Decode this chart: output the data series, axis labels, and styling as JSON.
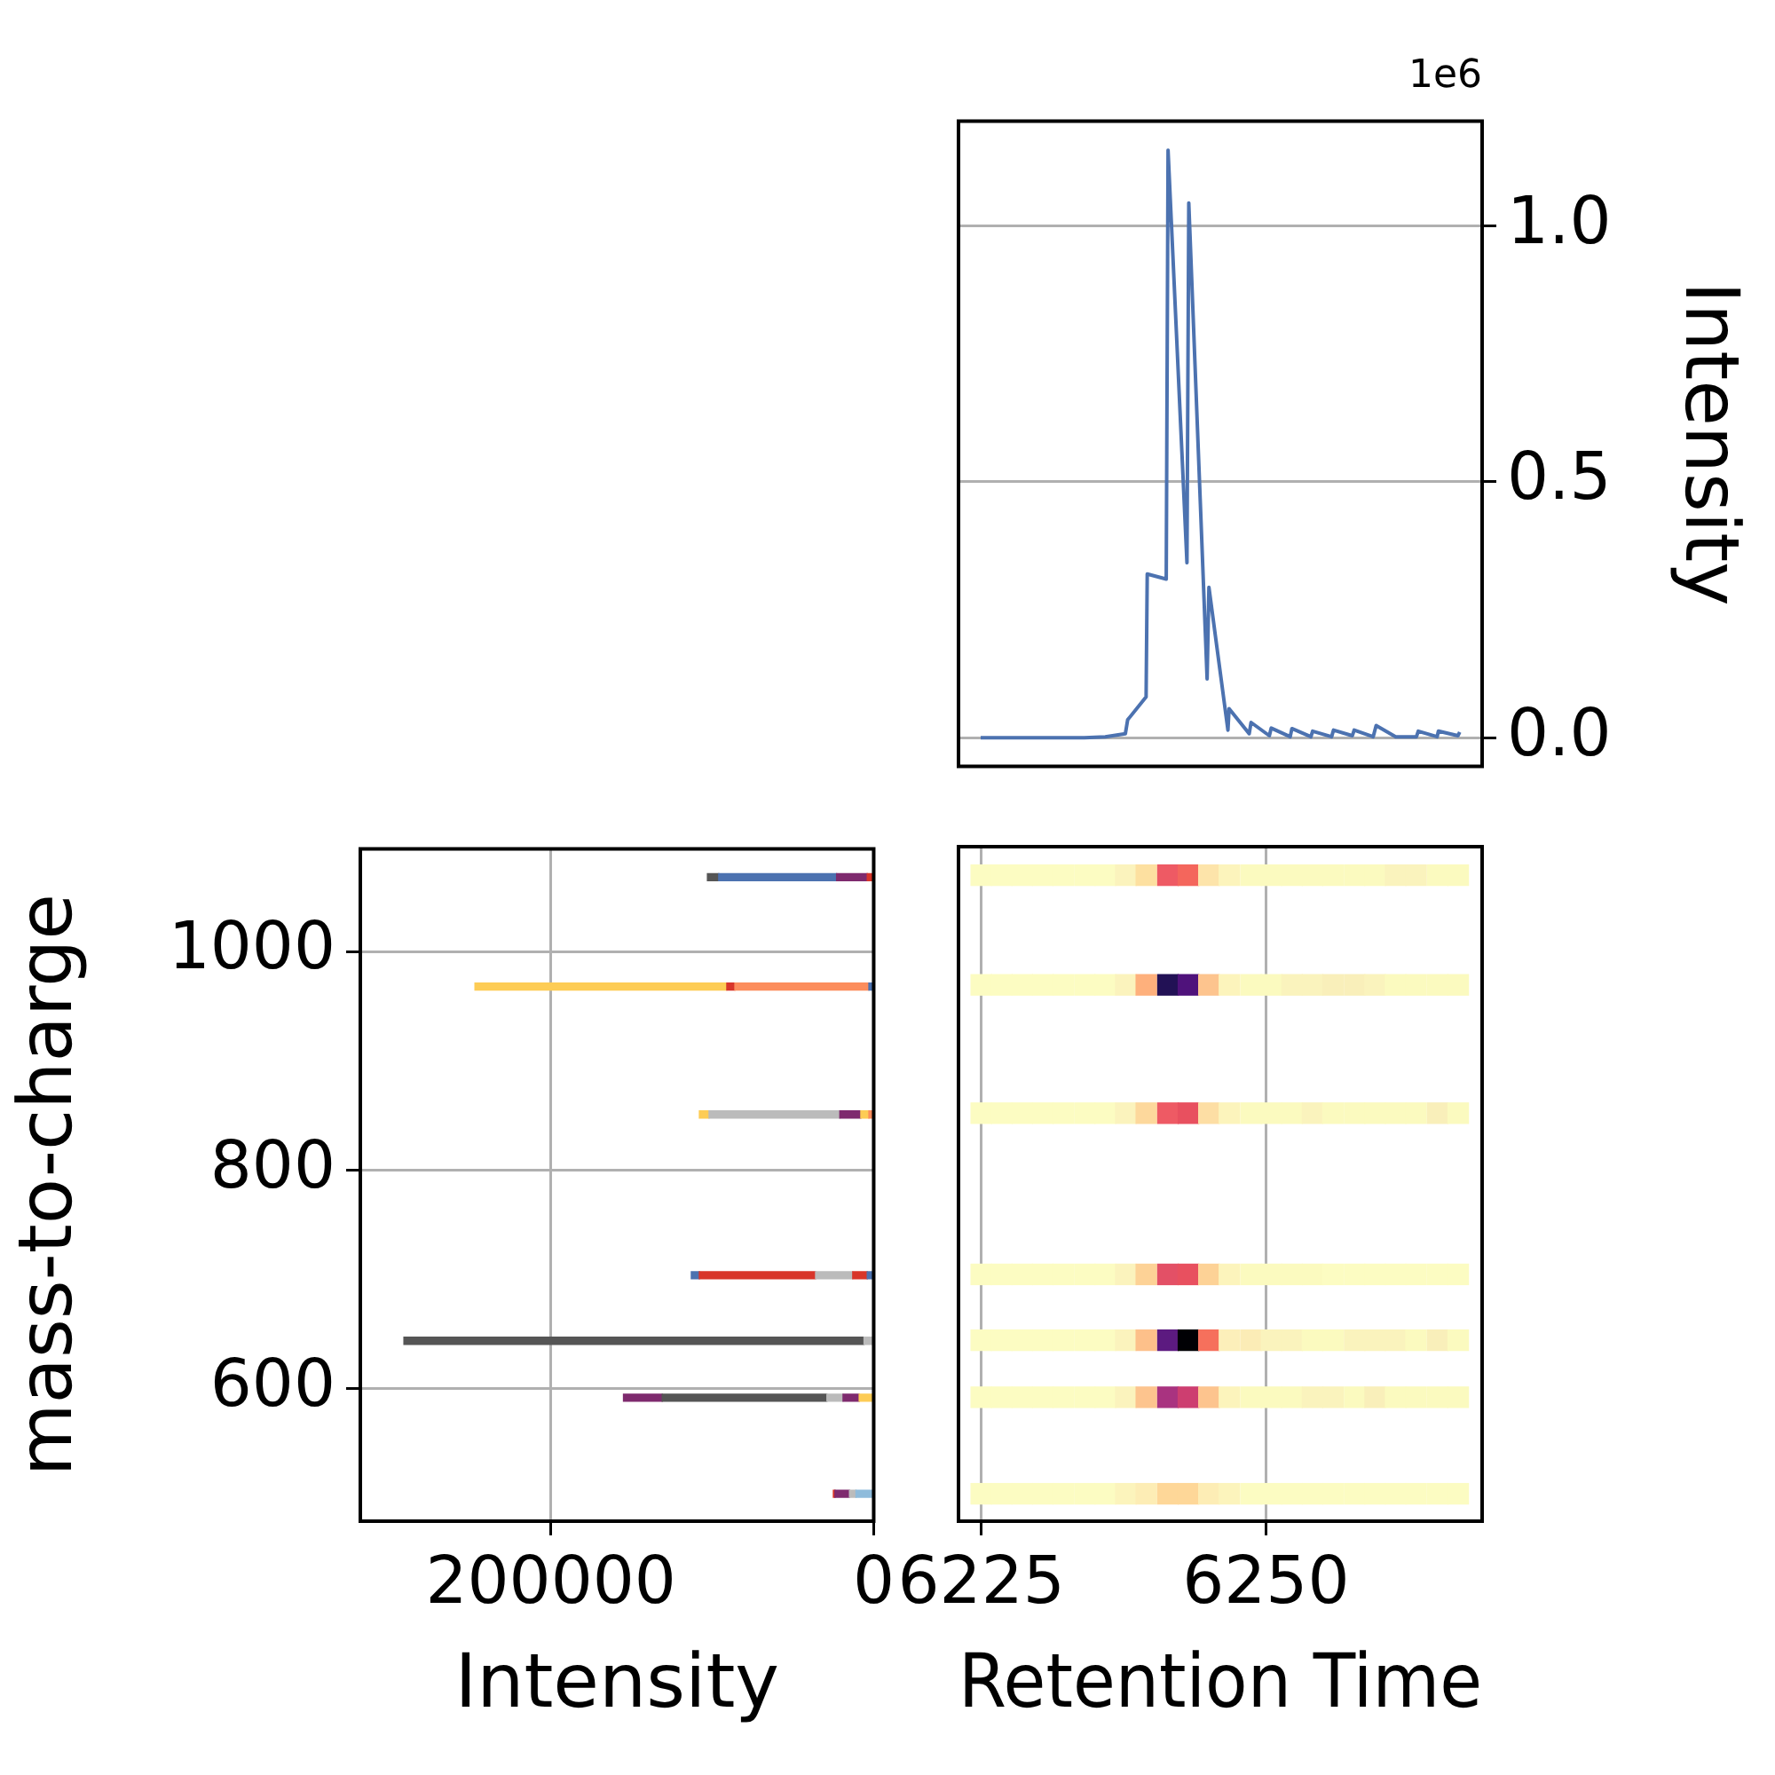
{
  "chart_data": [
    {
      "type": "line",
      "ylabel": "Intensity",
      "annotations": [
        "1e6"
      ],
      "grid": "y",
      "tick_labels": "y",
      "color": "#4c72b0",
      "x": [
        6224.95,
        6226.77,
        6228.59,
        6230.42,
        6232.24,
        6234.06,
        6235.89,
        6237.66,
        6237.86,
        6239.48,
        6239.58,
        6241.25,
        6241.41,
        6243.07,
        6243.23,
        6244.84,
        6245.0,
        6246.67,
        6246.77,
        6248.54,
        6248.7,
        6250.31,
        6250.47,
        6252.14,
        6252.29,
        6253.96,
        6254.11,
        6255.78,
        6255.94,
        6257.6,
        6257.76,
        6259.43,
        6259.69,
        6261.41,
        6263.23,
        6263.39,
        6265.05,
        6265.16,
        6266.88,
        6267.03
      ],
      "values": [
        0,
        0,
        0,
        0,
        0,
        0,
        0.002,
        0.008,
        0.035,
        0.08,
        0.32,
        0.31,
        1.148,
        0.342,
        1.045,
        0.115,
        0.294,
        0.015,
        0.057,
        0.008,
        0.03,
        0.004,
        0.019,
        0.002,
        0.018,
        0.002,
        0.013,
        0.002,
        0.015,
        0.004,
        0.015,
        0.002,
        0.024,
        0.002,
        0.002,
        0.013,
        0.002,
        0.013,
        0.004,
        0.011
      ],
      "xlim": [
        6223,
        6269
      ],
      "ylim": [
        -0.056,
        1.205
      ],
      "yticks": [
        {
          "value": 0,
          "label": "0.0"
        },
        0.5,
        {
          "value": 1,
          "label": "1.0"
        }
      ]
    },
    {
      "type": "bar",
      "orientation": "horizontal",
      "stacked": true,
      "xlabel": "Intensity",
      "ylabel": "mass-to-charge",
      "grid": true,
      "x": [
        1068,
        968,
        851,
        704,
        644,
        592,
        504
      ],
      "series": [
        {
          "values": [
            4000,
            3000,
            3000,
            4000,
            6000,
            9000,
            11000
          ],
          "colors": [
            "#d8352a",
            "#4c72b0",
            "#fc8d5c",
            "#4c72b0",
            "#bbbbbb",
            "#fdcc55",
            "#8ebbdb"
          ]
        },
        {
          "values": [
            19000,
            83000,
            5000,
            9000,
            285000,
            10000,
            4000
          ],
          "colors": [
            "#7e2a6e",
            "#fc8d5c",
            "#fdcc55",
            "#d8352a",
            "#555555",
            "#7e2a6e",
            "#bbbbbb"
          ]
        },
        {
          "values": [
            73000,
            5000,
            13000,
            23000,
            null,
            10000,
            9000
          ],
          "colors": [
            "#4c72b0",
            "#d8352a",
            "#7e2a6e",
            "#bbbbbb",
            null,
            "#bbbbbb",
            "#7e2a6e"
          ]
        },
        {
          "values": [
            7000,
            156000,
            81000,
            72000,
            null,
            102000,
            1000
          ],
          "colors": [
            "#555555",
            "#fdcc55",
            "#bbbbbb",
            "#d8352a",
            null,
            "#555555",
            "#d8352a"
          ]
        },
        {
          "values": [
            null,
            null,
            6000,
            5000,
            null,
            24000,
            null
          ],
          "colors": [
            null,
            null,
            "#fdcc55",
            "#4c72b0",
            null,
            "#7e2a6e",
            null
          ]
        }
      ],
      "xlim": [
        318000,
        0
      ],
      "xticks": [
        200000,
        0
      ],
      "ylim": [
        479,
        1094
      ],
      "yticks": [
        600,
        800,
        1000
      ]
    },
    {
      "type": "scatter",
      "xlabel": "Retention Time",
      "grid": "x",
      "tick_labels": "x",
      "marker": "square",
      "x": [
        6225.0,
        6226.8,
        6228.6,
        6230.4,
        6232.2,
        6234.1,
        6235.9,
        6237.7,
        6239.5,
        6241.4,
        6243.2,
        6245.0,
        6246.8,
        6248.7,
        6250.5,
        6252.3,
        6254.1,
        6255.9,
        6257.8,
        6259.6,
        6261.4,
        6263.2,
        6265.1,
        6266.9
      ],
      "series": [
        {
          "values": [
            1068,
            1068,
            1068,
            1068,
            1068,
            1068,
            1068,
            1068,
            1068,
            1068,
            1068,
            1068,
            1068,
            1068,
            1068,
            1068,
            1068,
            1068,
            1068,
            1068,
            1068,
            1068,
            1068,
            1068
          ],
          "colors": [
            "#fcfcc2",
            "#fcfcc2",
            "#fcfcc2",
            "#fcfcc2",
            "#fcfcc2",
            "#fcfcc2",
            "#fcfcc2",
            "#fbf3bd",
            "#fde0a0",
            "#ee5a64",
            "#f4665c",
            "#fde4aa",
            "#fcf4bc",
            "#fbfabf",
            "#fbfabf",
            "#fbfabf",
            "#fbfabf",
            "#fbfabf",
            "#fbfabf",
            "#fbfabf",
            "#faf3bd",
            "#faf3bd",
            "#fbfabf",
            "#fbfabf"
          ]
        },
        {
          "values": [
            968,
            968,
            968,
            968,
            968,
            968,
            968,
            968,
            968,
            968,
            968,
            968,
            968,
            968,
            968,
            968,
            968,
            968,
            968,
            968,
            968,
            968,
            968,
            968
          ],
          "colors": [
            "#fcfcc2",
            "#fcfcc2",
            "#fcfcc2",
            "#fcfcc2",
            "#fcfcc2",
            "#fcfcc2",
            "#fcfcc2",
            "#fbf3bd",
            "#feb07c",
            "#221155",
            "#4f127b",
            "#fdc48e",
            "#fcf4bc",
            "#fbfabf",
            "#fbfabf",
            "#faf3bd",
            "#faf3bd",
            "#f9efba",
            "#f9efba",
            "#faf3bd",
            "#fbfabf",
            "#fbfabf",
            "#fbfabf",
            "#fbfabf"
          ]
        },
        {
          "values": [
            851,
            851,
            851,
            851,
            851,
            851,
            851,
            851,
            851,
            851,
            851,
            851,
            851,
            851,
            851,
            851,
            851,
            851,
            851,
            851,
            851,
            851,
            851,
            851
          ],
          "colors": [
            "#fcfcc2",
            "#fcfcc2",
            "#fcfcc2",
            "#fcfcc2",
            "#fcfcc2",
            "#fcfcc2",
            "#fcfcc2",
            "#fbf3bd",
            "#fdd89c",
            "#ee5a64",
            "#e8505f",
            "#fddea4",
            "#fcf4bc",
            "#fbfabf",
            "#fbfabf",
            "#fbfabf",
            "#faf3bd",
            "#fbfabf",
            "#fbfabf",
            "#fbfabf",
            "#fbfabf",
            "#fbfabf",
            "#f9efba",
            "#fbfabf"
          ]
        },
        {
          "values": [
            704,
            704,
            704,
            704,
            704,
            704,
            704,
            704,
            704,
            704,
            704,
            704,
            704,
            704,
            704,
            704,
            704,
            704,
            704,
            704,
            704,
            704,
            704,
            704
          ],
          "colors": [
            "#fcfcc2",
            "#fcfcc2",
            "#fcfcc2",
            "#fcfcc2",
            "#fcfcc2",
            "#fcfcc2",
            "#fcfcc2",
            "#fbf3bd",
            "#fdd296",
            "#e35066",
            "#e8505f",
            "#fdd296",
            "#fcf4bc",
            "#fbfabf",
            "#fbfabf",
            "#fbfabf",
            "#fbfabf",
            "#fcfcc2",
            "#fcfcc2",
            "#fcfcc2",
            "#fcfcc2",
            "#fcfcc2",
            "#fcfcc2",
            "#fcfcc2"
          ]
        },
        {
          "values": [
            644,
            644,
            644,
            644,
            644,
            644,
            644,
            644,
            644,
            644,
            644,
            644,
            644,
            644,
            644,
            644,
            644,
            644,
            644,
            644,
            644,
            644,
            644,
            644
          ],
          "colors": [
            "#fcfcc2",
            "#fcfcc2",
            "#fcfcc2",
            "#fcfcc2",
            "#fcfcc2",
            "#fcfcc2",
            "#fcfcc2",
            "#fbf3bd",
            "#fdc08a",
            "#5c1a80",
            "#000004",
            "#f6705c",
            "#fcefba",
            "#fbecb6",
            "#faf3bd",
            "#faf3bd",
            "#fbfabf",
            "#fbfabf",
            "#faf3bd",
            "#faf3bd",
            "#faf3bd",
            "#fbfabf",
            "#f9efba",
            "#fbfabf"
          ]
        },
        {
          "values": [
            592,
            592,
            592,
            592,
            592,
            592,
            592,
            592,
            592,
            592,
            592,
            592,
            592,
            592,
            592,
            592,
            592,
            592,
            592,
            592,
            592,
            592,
            592,
            592
          ],
          "colors": [
            "#fcfcc2",
            "#fcfcc2",
            "#fcfcc2",
            "#fcfcc2",
            "#fcfcc2",
            "#fcfcc2",
            "#fcfcc2",
            "#fbf3bd",
            "#fdc48e",
            "#a93380",
            "#cd3e70",
            "#fdc48e",
            "#fcf4bc",
            "#fbfabf",
            "#fbfabf",
            "#fbfabf",
            "#faf3bd",
            "#faf3bd",
            "#fbfabf",
            "#f9efba",
            "#fbfabf",
            "#fbfabf",
            "#fbfabf",
            "#fbfabf"
          ]
        },
        {
          "values": [
            504,
            504,
            504,
            504,
            504,
            504,
            504,
            504,
            504,
            504,
            504,
            504,
            504,
            504,
            504,
            504,
            504,
            504,
            504,
            504,
            504,
            504,
            504,
            504
          ],
          "colors": [
            "#fcfcc2",
            "#fcfcc2",
            "#fcfcc2",
            "#fcfcc2",
            "#fcfcc2",
            "#fcfcc2",
            "#fcfcc2",
            "#fcf4bc",
            "#fdedb5",
            "#fed798",
            "#fed798",
            "#fdedb5",
            "#fcf4bc",
            "#fcfcc2",
            "#fcfcc2",
            "#fcfcc2",
            "#fcfcc2",
            "#fcfcc2",
            "#fcfcc2",
            "#fcfcc2",
            "#fcfcc2",
            "#fcfcc2",
            "#fcfcc2",
            "#fcfcc2"
          ]
        }
      ],
      "xlim": [
        6223,
        6269
      ],
      "xticks": [
        6225,
        6250
      ],
      "ylim": [
        479,
        1094
      ]
    }
  ]
}
